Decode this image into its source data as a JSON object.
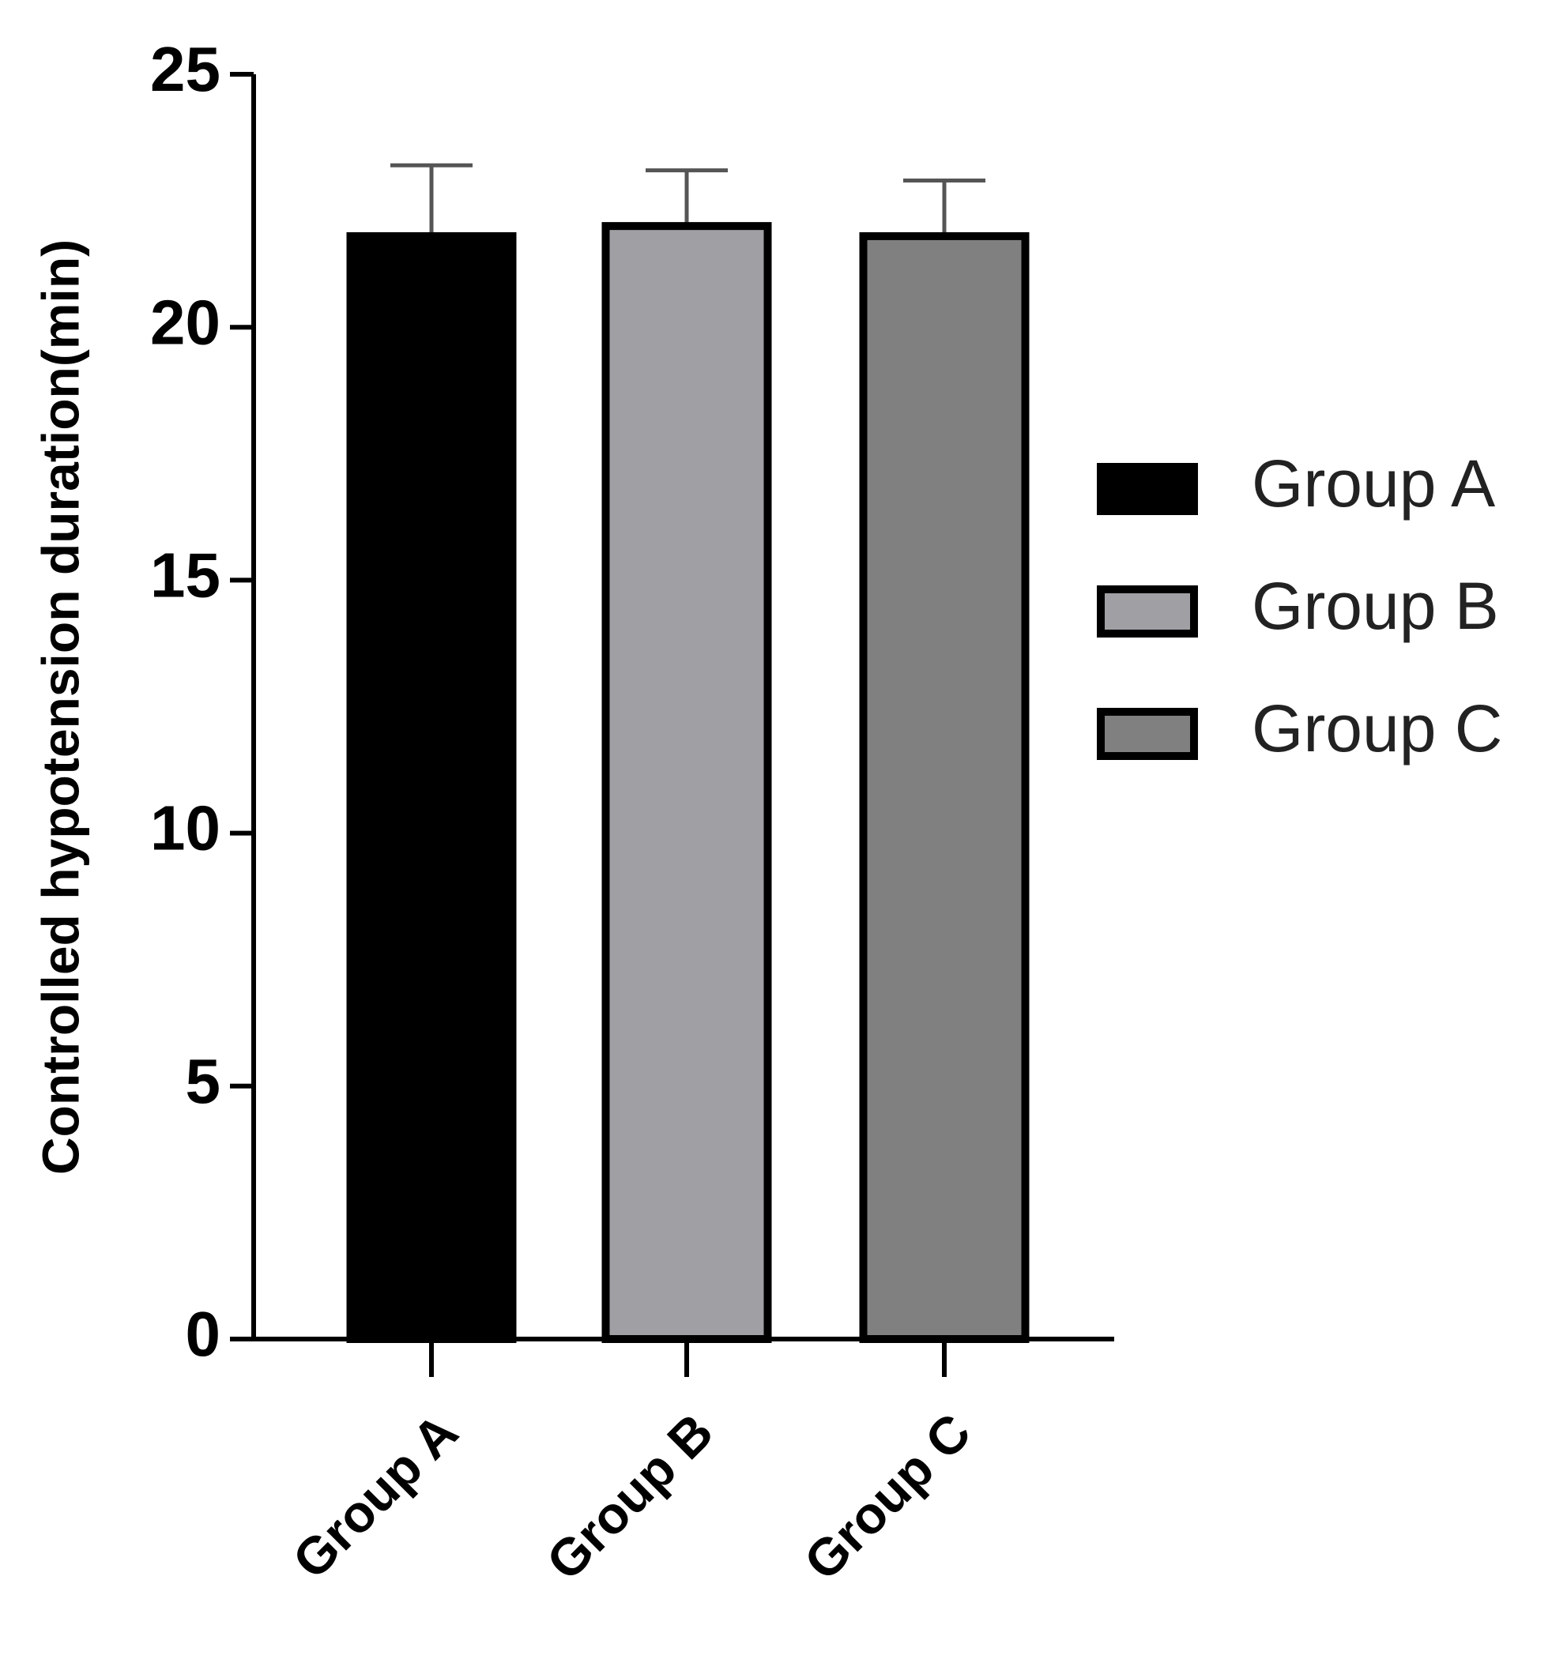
{
  "chart_data": {
    "type": "bar",
    "y_label": "Controlled hypotension duration(min)",
    "categories": [
      "Group A",
      "Group B",
      "Group C"
    ],
    "values": [
      21.8,
      22.0,
      21.8
    ],
    "errors": [
      1.4,
      1.1,
      1.1
    ],
    "colors": [
      "#000000",
      "#a0a0a4",
      "#808080"
    ],
    "legend": [
      "Group A",
      "Group B",
      "Group C"
    ],
    "ylim": [
      0,
      25
    ],
    "yticks": [
      0,
      5,
      10,
      15,
      20,
      25
    ]
  }
}
